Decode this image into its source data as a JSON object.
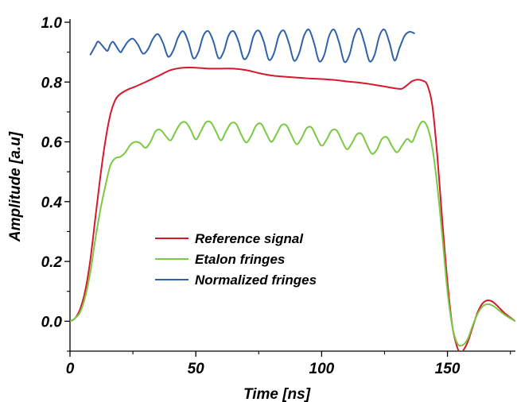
{
  "chart_data": {
    "type": "line",
    "xlabel": "Time [ns]",
    "ylabel": "Amplitude [a.u]",
    "xlim": [
      0,
      177
    ],
    "ylim": [
      -0.1,
      1.0
    ],
    "x_ticks": [
      0,
      50,
      100,
      150
    ],
    "y_ticks": [
      0.0,
      0.2,
      0.4,
      0.6,
      0.8,
      1.0
    ],
    "x_tick_labels": [
      "0",
      "50",
      "100",
      "150"
    ],
    "y_tick_labels": [
      "0.0",
      "0.2",
      "0.4",
      "0.6",
      "0.8",
      "1.0"
    ],
    "grid": false,
    "legend_position": "center",
    "series": [
      {
        "name": "Reference signal",
        "color": "#d6192d",
        "points": [
          [
            0,
            0.0
          ],
          [
            2,
            0.01
          ],
          [
            4,
            0.04
          ],
          [
            6,
            0.1
          ],
          [
            8,
            0.2
          ],
          [
            10,
            0.34
          ],
          [
            12,
            0.48
          ],
          [
            14,
            0.6
          ],
          [
            16,
            0.69
          ],
          [
            18,
            0.74
          ],
          [
            20,
            0.76
          ],
          [
            23,
            0.775
          ],
          [
            26,
            0.785
          ],
          [
            30,
            0.8
          ],
          [
            35,
            0.82
          ],
          [
            40,
            0.84
          ],
          [
            45,
            0.848
          ],
          [
            50,
            0.848
          ],
          [
            55,
            0.845
          ],
          [
            60,
            0.845
          ],
          [
            65,
            0.845
          ],
          [
            70,
            0.84
          ],
          [
            75,
            0.83
          ],
          [
            80,
            0.822
          ],
          [
            85,
            0.818
          ],
          [
            90,
            0.815
          ],
          [
            95,
            0.812
          ],
          [
            100,
            0.81
          ],
          [
            105,
            0.807
          ],
          [
            110,
            0.802
          ],
          [
            115,
            0.798
          ],
          [
            120,
            0.792
          ],
          [
            125,
            0.785
          ],
          [
            130,
            0.778
          ],
          [
            132,
            0.778
          ],
          [
            134,
            0.79
          ],
          [
            136,
            0.803
          ],
          [
            138,
            0.808
          ],
          [
            140,
            0.805
          ],
          [
            142,
            0.79
          ],
          [
            144,
            0.72
          ],
          [
            146,
            0.55
          ],
          [
            148,
            0.33
          ],
          [
            150,
            0.13
          ],
          [
            152,
            -0.02
          ],
          [
            154,
            -0.09
          ],
          [
            155,
            -0.1
          ],
          [
            156,
            -0.1
          ],
          [
            158,
            -0.07
          ],
          [
            160,
            -0.02
          ],
          [
            162,
            0.03
          ],
          [
            164,
            0.06
          ],
          [
            166,
            0.07
          ],
          [
            168,
            0.065
          ],
          [
            170,
            0.05
          ],
          [
            173,
            0.025
          ],
          [
            177,
            0.0
          ]
        ]
      },
      {
        "name": "Etalon fringes",
        "color": "#7ac943",
        "points": [
          [
            0,
            0.0
          ],
          [
            2,
            0.01
          ],
          [
            4,
            0.03
          ],
          [
            6,
            0.08
          ],
          [
            8,
            0.16
          ],
          [
            10,
            0.27
          ],
          [
            12,
            0.37
          ],
          [
            14,
            0.45
          ],
          [
            16,
            0.52
          ],
          [
            18,
            0.545
          ],
          [
            20,
            0.55
          ],
          [
            22,
            0.565
          ],
          [
            24,
            0.59
          ],
          [
            26,
            0.6
          ],
          [
            28,
            0.595
          ],
          [
            30,
            0.58
          ],
          [
            32,
            0.6
          ],
          [
            34,
            0.635
          ],
          [
            36,
            0.64
          ],
          [
            38,
            0.62
          ],
          [
            40,
            0.605
          ],
          [
            42,
            0.635
          ],
          [
            44,
            0.662
          ],
          [
            46,
            0.665
          ],
          [
            48,
            0.64
          ],
          [
            50,
            0.608
          ],
          [
            52,
            0.635
          ],
          [
            54,
            0.665
          ],
          [
            56,
            0.665
          ],
          [
            58,
            0.635
          ],
          [
            60,
            0.605
          ],
          [
            62,
            0.635
          ],
          [
            64,
            0.662
          ],
          [
            66,
            0.66
          ],
          [
            68,
            0.625
          ],
          [
            70,
            0.598
          ],
          [
            72,
            0.62
          ],
          [
            74,
            0.655
          ],
          [
            76,
            0.66
          ],
          [
            78,
            0.628
          ],
          [
            80,
            0.6
          ],
          [
            82,
            0.625
          ],
          [
            84,
            0.655
          ],
          [
            86,
            0.655
          ],
          [
            88,
            0.622
          ],
          [
            90,
            0.592
          ],
          [
            92,
            0.612
          ],
          [
            94,
            0.645
          ],
          [
            96,
            0.648
          ],
          [
            98,
            0.615
          ],
          [
            100,
            0.587
          ],
          [
            102,
            0.608
          ],
          [
            104,
            0.638
          ],
          [
            106,
            0.638
          ],
          [
            108,
            0.605
          ],
          [
            110,
            0.575
          ],
          [
            112,
            0.595
          ],
          [
            114,
            0.625
          ],
          [
            116,
            0.625
          ],
          [
            118,
            0.59
          ],
          [
            120,
            0.56
          ],
          [
            122,
            0.575
          ],
          [
            124,
            0.61
          ],
          [
            126,
            0.615
          ],
          [
            128,
            0.585
          ],
          [
            130,
            0.565
          ],
          [
            132,
            0.588
          ],
          [
            134,
            0.61
          ],
          [
            136,
            0.6
          ],
          [
            138,
            0.64
          ],
          [
            140,
            0.668
          ],
          [
            142,
            0.65
          ],
          [
            144,
            0.58
          ],
          [
            146,
            0.45
          ],
          [
            148,
            0.28
          ],
          [
            150,
            0.1
          ],
          [
            152,
            -0.02
          ],
          [
            154,
            -0.075
          ],
          [
            156,
            -0.08
          ],
          [
            158,
            -0.06
          ],
          [
            160,
            -0.015
          ],
          [
            162,
            0.025
          ],
          [
            164,
            0.05
          ],
          [
            166,
            0.057
          ],
          [
            168,
            0.052
          ],
          [
            170,
            0.04
          ],
          [
            173,
            0.02
          ],
          [
            177,
            0.0
          ]
        ]
      },
      {
        "name": "Normalized fringes",
        "color": "#2f62a6",
        "points": [
          [
            8,
            0.89
          ],
          [
            10,
            0.92
          ],
          [
            11,
            0.935
          ],
          [
            12,
            0.93
          ],
          [
            14,
            0.91
          ],
          [
            15,
            0.905
          ],
          [
            16,
            0.925
          ],
          [
            17,
            0.935
          ],
          [
            18,
            0.925
          ],
          [
            20,
            0.9
          ],
          [
            21,
            0.91
          ],
          [
            23,
            0.935
          ],
          [
            25,
            0.945
          ],
          [
            27,
            0.925
          ],
          [
            29,
            0.895
          ],
          [
            31,
            0.91
          ],
          [
            33,
            0.945
          ],
          [
            35,
            0.96
          ],
          [
            37,
            0.93
          ],
          [
            39,
            0.885
          ],
          [
            41,
            0.905
          ],
          [
            43,
            0.95
          ],
          [
            45,
            0.97
          ],
          [
            47,
            0.935
          ],
          [
            49,
            0.88
          ],
          [
            51,
            0.9
          ],
          [
            53,
            0.955
          ],
          [
            55,
            0.97
          ],
          [
            57,
            0.935
          ],
          [
            59,
            0.88
          ],
          [
            61,
            0.9
          ],
          [
            63,
            0.955
          ],
          [
            65,
            0.97
          ],
          [
            67,
            0.935
          ],
          [
            69,
            0.878
          ],
          [
            71,
            0.895
          ],
          [
            73,
            0.955
          ],
          [
            75,
            0.972
          ],
          [
            77,
            0.935
          ],
          [
            79,
            0.875
          ],
          [
            81,
            0.895
          ],
          [
            83,
            0.955
          ],
          [
            85,
            0.972
          ],
          [
            87,
            0.93
          ],
          [
            89,
            0.872
          ],
          [
            91,
            0.895
          ],
          [
            93,
            0.955
          ],
          [
            95,
            0.975
          ],
          [
            97,
            0.93
          ],
          [
            99,
            0.87
          ],
          [
            101,
            0.89
          ],
          [
            103,
            0.955
          ],
          [
            105,
            0.975
          ],
          [
            107,
            0.93
          ],
          [
            109,
            0.868
          ],
          [
            111,
            0.89
          ],
          [
            113,
            0.955
          ],
          [
            115,
            0.978
          ],
          [
            117,
            0.93
          ],
          [
            119,
            0.87
          ],
          [
            121,
            0.89
          ],
          [
            123,
            0.955
          ],
          [
            125,
            0.975
          ],
          [
            127,
            0.93
          ],
          [
            129,
            0.872
          ],
          [
            131,
            0.915
          ],
          [
            133,
            0.955
          ],
          [
            135,
            0.968
          ],
          [
            137,
            0.962
          ]
        ]
      }
    ]
  }
}
